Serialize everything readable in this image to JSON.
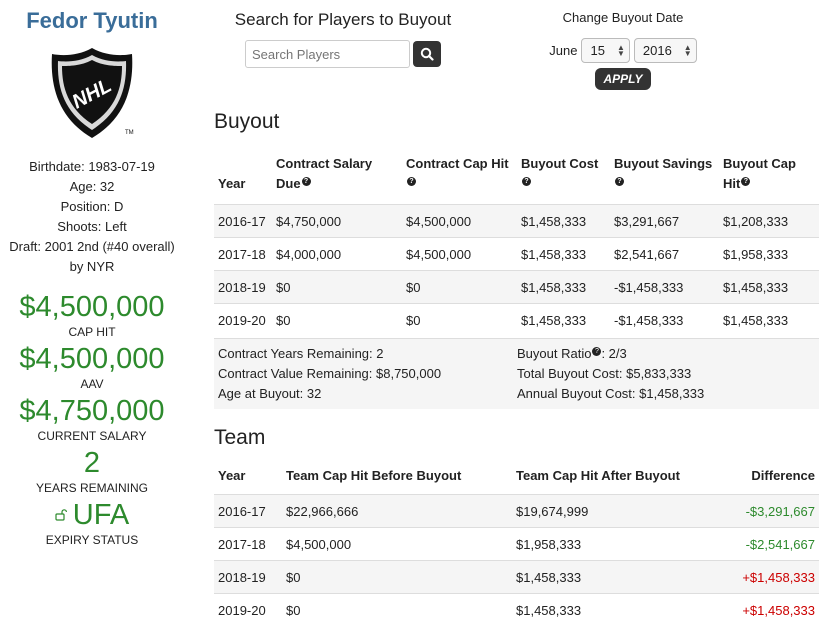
{
  "player": {
    "name": "Fedor Tyutin",
    "bio": [
      "Birthdate: 1983-07-19",
      "Age: 32",
      "Position: D",
      "Shoots: Left",
      "Draft: 2001 2nd (#40 overall)",
      "by NYR"
    ],
    "cap_hit": "$4,500,000",
    "cap_hit_label": "CAP HIT",
    "aav": "$4,500,000",
    "aav_label": "AAV",
    "salary": "$4,750,000",
    "salary_label": "CURRENT SALARY",
    "years": "2",
    "years_label": "YEARS REMAINING",
    "expiry": "UFA",
    "expiry_label": "EXPIRY STATUS"
  },
  "search": {
    "title": "Search for Players to Buyout",
    "placeholder": "Search Players"
  },
  "buyout_date": {
    "title": "Change Buyout Date",
    "month": "June",
    "day": "15",
    "year": "2016",
    "apply": "APPLY"
  },
  "buyout": {
    "title": "Buyout",
    "headers": [
      "Year",
      "Contract Salary Due",
      "Contract Cap Hit",
      "Buyout Cost",
      "Buyout Savings",
      "Buyout Cap Hit"
    ],
    "rows": [
      [
        "2016-17",
        "$4,750,000",
        "$4,500,000",
        "$1,458,333",
        "$3,291,667",
        "$1,208,333"
      ],
      [
        "2017-18",
        "$4,000,000",
        "$4,500,000",
        "$1,458,333",
        "$2,541,667",
        "$1,958,333"
      ],
      [
        "2018-19",
        "$0",
        "$0",
        "$1,458,333",
        "-$1,458,333",
        "$1,458,333"
      ],
      [
        "2019-20",
        "$0",
        "$0",
        "$1,458,333",
        "-$1,458,333",
        "$1,458,333"
      ]
    ],
    "summary": {
      "years_remaining": "Contract Years Remaining: 2",
      "value_remaining": "Contract Value Remaining: $8,750,000",
      "age": "Age at Buyout: 32",
      "ratio_label": "Buyout Ratio",
      "ratio_value": ": 2/3",
      "total": "Total Buyout Cost: $5,833,333",
      "annual": "Annual Buyout Cost: $1,458,333"
    }
  },
  "team": {
    "title": "Team",
    "headers": [
      "Year",
      "Team Cap Hit Before Buyout",
      "Team Cap Hit After Buyout",
      "Difference"
    ],
    "rows": [
      [
        "2016-17",
        "$22,966,666",
        "$19,674,999",
        "-$3,291,667"
      ],
      [
        "2017-18",
        "$4,500,000",
        "$1,958,333",
        "-$2,541,667"
      ],
      [
        "2018-19",
        "$0",
        "$1,458,333",
        "+$1,458,333"
      ],
      [
        "2019-20",
        "$0",
        "$1,458,333",
        "+$1,458,333"
      ]
    ]
  },
  "colors": {
    "name": "#3a6d99",
    "money": "#2d8a2d",
    "negative": "#2d8a2d",
    "positive": "#cc0000"
  }
}
